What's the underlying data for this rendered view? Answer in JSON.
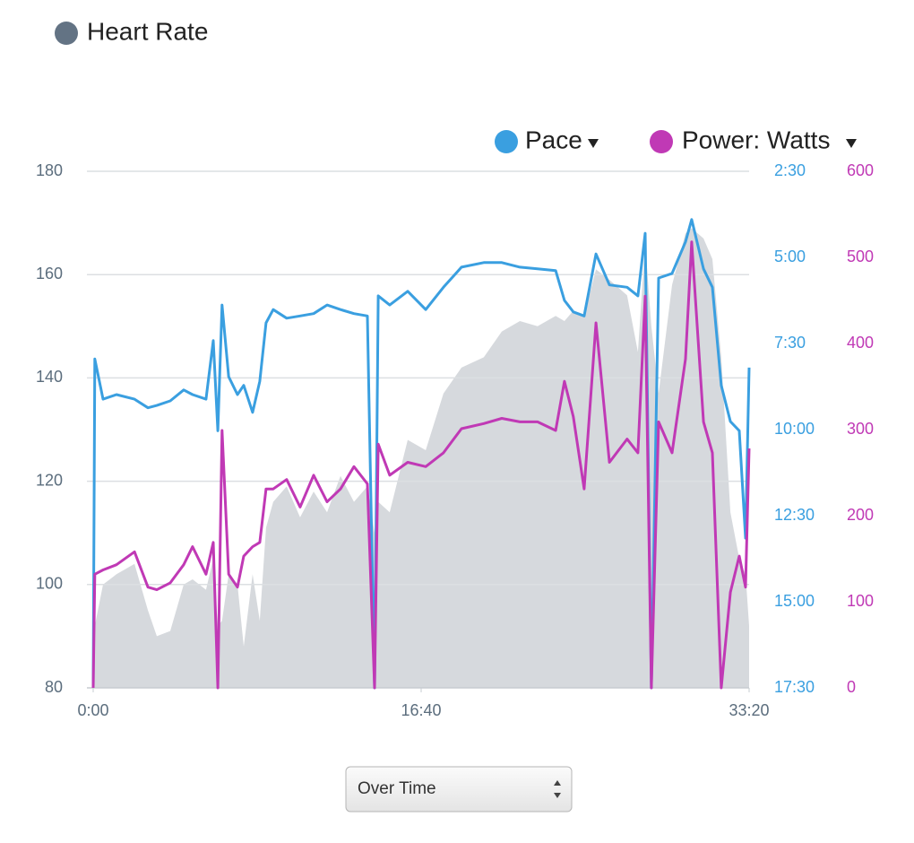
{
  "chart_data": {
    "type": "line",
    "x": [
      0,
      5,
      30,
      71,
      126,
      167,
      194,
      235,
      276,
      303,
      344,
      366,
      380,
      393,
      413,
      440,
      459,
      486,
      508,
      527,
      549,
      590,
      631,
      672,
      713,
      754,
      795,
      836,
      858,
      869,
      904,
      959,
      1014,
      1068,
      1123,
      1191,
      1246,
      1301,
      1355,
      1410,
      1437,
      1464,
      1497,
      1533,
      1574,
      1628,
      1661,
      1683,
      1702,
      1724,
      1765,
      1806,
      1825,
      1861,
      1888,
      1915,
      1943,
      1970,
      1989,
      2000
    ],
    "series": [
      {
        "name": "Heart Rate",
        "type": "area",
        "color": "#d6d9dd",
        "legend_color": "#637384",
        "axis": "y",
        "values": [
          80,
          92,
          100,
          102,
          104,
          95,
          90,
          91,
          100,
          101,
          99,
          105,
          92,
          93,
          102,
          100,
          88,
          102,
          93,
          111,
          116,
          119,
          113,
          118,
          114,
          121,
          116,
          119,
          110,
          116,
          114,
          128,
          126,
          137,
          142,
          144,
          149,
          151,
          150,
          152,
          151,
          153,
          152,
          161,
          159,
          156,
          145,
          166,
          150,
          137,
          158,
          168,
          169,
          167,
          163,
          144,
          114,
          105,
          102,
          92
        ]
      },
      {
        "name": "Pace",
        "type": "line",
        "color": "#3a9fe0",
        "axis": "y2",
        "values": [
          1050,
          477,
          547,
          539,
          547,
          562,
          558,
          550,
          531,
          539,
          547,
          445,
          602,
          383,
          508,
          539,
          523,
          570,
          516,
          414,
          391,
          406,
          402,
          398,
          383,
          391,
          398,
          402,
          1050,
          367,
          383,
          359,
          391,
          352,
          317,
          309,
          309,
          317,
          320,
          323,
          375,
          395,
          402,
          294,
          348,
          352,
          367,
          258,
          1050,
          336,
          328,
          273,
          234,
          320,
          352,
          523,
          586,
          602,
          789,
          492
        ]
      },
      {
        "name": "Power: Watts",
        "type": "line",
        "color": "#c039b5",
        "axis": "y3",
        "values": [
          0,
          132,
          137,
          143,
          158,
          117,
          114,
          122,
          143,
          164,
          132,
          169,
          0,
          299,
          132,
          117,
          153,
          164,
          169,
          231,
          231,
          242,
          210,
          247,
          216,
          231,
          257,
          237,
          0,
          283,
          247,
          262,
          257,
          273,
          301,
          307,
          313,
          309,
          309,
          299,
          356,
          315,
          231,
          424,
          262,
          289,
          273,
          455,
          0,
          309,
          273,
          382,
          518,
          309,
          273,
          0,
          111,
          153,
          117,
          278
        ]
      }
    ],
    "xlim": [
      0,
      2000
    ],
    "xticks": [
      {
        "value": 0,
        "label": "0:00"
      },
      {
        "value": 1000,
        "label": "16:40"
      },
      {
        "value": 2000,
        "label": "33:20"
      }
    ],
    "ylim": [
      80,
      180
    ],
    "yticks": [
      80,
      100,
      120,
      140,
      160,
      180
    ],
    "y2lim": [
      1050,
      150
    ],
    "y2ticks": [
      {
        "value": 150,
        "label": "2:30"
      },
      {
        "value": 300,
        "label": "5:00"
      },
      {
        "value": 450,
        "label": "7:30"
      },
      {
        "value": 600,
        "label": "10:00"
      },
      {
        "value": 750,
        "label": "12:30"
      },
      {
        "value": 900,
        "label": "15:00"
      },
      {
        "value": 1050,
        "label": "17:30"
      }
    ],
    "y3lim": [
      0,
      600
    ],
    "y3ticks": [
      0,
      100,
      200,
      300,
      400,
      500,
      600
    ],
    "grid": true
  },
  "controls": {
    "view_select": "Over Time"
  }
}
